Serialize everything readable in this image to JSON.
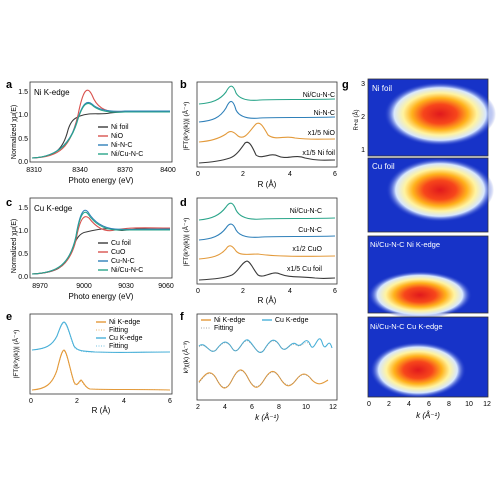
{
  "figure": {
    "panels": {
      "a": {
        "letter": "a",
        "inset": "Ni K-edge",
        "xlabel": "Photo energy (eV)",
        "ylabel": "Normalized χμ(E)",
        "xticks": [
          "8310",
          "8340",
          "8370",
          "8400"
        ],
        "yticks": [
          "0.0",
          "0.5",
          "1.0",
          "1.5"
        ],
        "legend": [
          "Ni foil",
          "NiO",
          "Ni-N-C",
          "Ni/Cu-N-C"
        ]
      },
      "b": {
        "letter": "b",
        "xlabel": "R (Å)",
        "ylabel": "|FT(k³χ(k))| (Å⁻⁴)",
        "xticks": [
          "0",
          "2",
          "4",
          "6"
        ],
        "labels": [
          "Ni/Cu-N-C",
          "Ni-N-C",
          "x1/5 NiO",
          "x1/5 Ni foil"
        ]
      },
      "c": {
        "letter": "c",
        "inset": "Cu K-edge",
        "xlabel": "Photo energy (eV)",
        "ylabel": "Normalized χμ(E)",
        "xticks": [
          "8970",
          "9000",
          "9030",
          "9060"
        ],
        "yticks": [
          "0.0",
          "0.5",
          "1.0",
          "1.5"
        ],
        "legend": [
          "Cu foil",
          "CuO",
          "Cu-N-C",
          "Ni/Cu-N-C"
        ]
      },
      "d": {
        "letter": "d",
        "xlabel": "R (Å)",
        "ylabel": "|FT(k³χ(k))| (Å⁻⁴)",
        "xticks": [
          "0",
          "2",
          "4",
          "6"
        ],
        "labels": [
          "Ni/Cu-N-C",
          "Cu-N-C",
          "x1/2 CuO",
          "x1/5 Cu foil"
        ]
      },
      "e": {
        "letter": "e",
        "xlabel": "R (Å)",
        "ylabel": "|FT(k³χ(k))| (Å⁻⁴)",
        "xticks": [
          "0",
          "2",
          "4",
          "6"
        ],
        "legend": [
          "Ni K-edge",
          "Fitting",
          "Cu K-edge",
          "Fitting"
        ]
      },
      "f": {
        "letter": "f",
        "xlabel": "k (Å⁻¹)",
        "ylabel": "k³χ(k) (Å⁻³)",
        "xticks": [
          "2",
          "4",
          "6",
          "8",
          "10",
          "12"
        ],
        "legend": [
          "Ni K-edge",
          "Cu K-edge",
          "Fitting"
        ]
      },
      "g": {
        "letter": "g",
        "xlabel": "k (Å⁻¹)",
        "ylabel": "R+α (Å)",
        "xticks": [
          "0",
          "2",
          "4",
          "6",
          "8",
          "10",
          "12"
        ],
        "yticks": [
          "1",
          "2",
          "3"
        ],
        "maps": [
          "Ni foil",
          "Cu foil",
          "Ni/Cu-N-C Ni K-edge",
          "Ni/Cu-N-C Cu K-edge"
        ]
      }
    },
    "colors": {
      "black": "#3a3a3a",
      "red": "#d9534f",
      "blue": "#2f80b9",
      "green": "#2aa58a",
      "orange": "#e39a3b",
      "cyan": "#49b0d8",
      "heat_bg": "#1733c8"
    }
  }
}
